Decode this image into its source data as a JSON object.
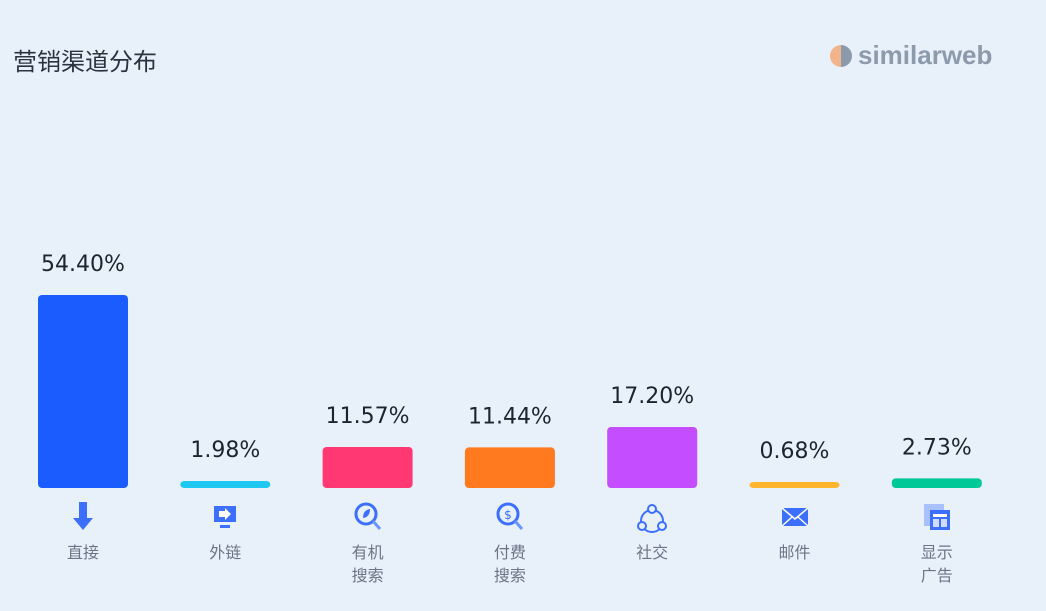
{
  "header": {
    "title": "营销渠道分布",
    "logo_text": "similarweb"
  },
  "chart_data": {
    "type": "bar",
    "categories": [
      "直接",
      "外链",
      "有机\n搜索",
      "付费\n搜索",
      "社交",
      "邮件",
      "显示\n广告"
    ],
    "values": [
      54.4,
      1.98,
      11.57,
      11.44,
      17.2,
      0.68,
      2.73
    ],
    "data_labels": [
      "54.40%",
      "1.98%",
      "11.57%",
      "11.44%",
      "17.20%",
      "0.68%",
      "2.73%"
    ],
    "colors": [
      "#1a5cff",
      "#1ec8f0",
      "#ff3773",
      "#ff7a1e",
      "#c44dff",
      "#ffb52e",
      "#00c896"
    ],
    "icons": [
      "arrow-down-icon",
      "monitor-arrow-icon",
      "search-leaf-icon",
      "search-dollar-icon",
      "share-network-icon",
      "envelope-icon",
      "display-ad-icon"
    ],
    "ylim": [
      0,
      60
    ],
    "grid": false
  }
}
